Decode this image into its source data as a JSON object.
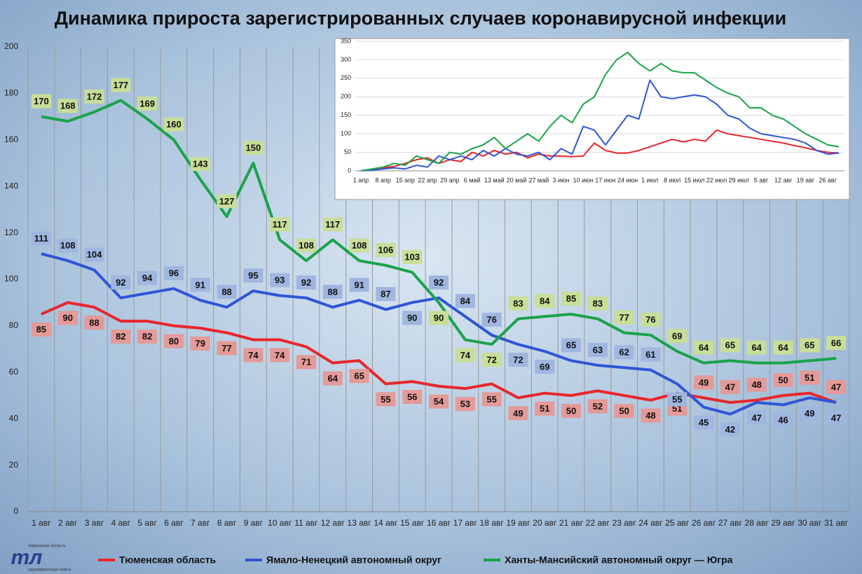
{
  "chart_data": [
    {
      "type": "line",
      "title": "Динамика прироста зарегистрированных случаев коронавирусной инфекции",
      "categories": [
        "1 авг",
        "2 авг",
        "3 авг",
        "4 авг",
        "5 авг",
        "6 авг",
        "7 авг",
        "8 авг",
        "9 авг",
        "10 авг",
        "11 авг",
        "12 авг",
        "13 авг",
        "14 авг",
        "15 авг",
        "16 авг",
        "17 авг",
        "18 авг",
        "19 авг",
        "20 авг",
        "21 авг",
        "22 авг",
        "23 авг",
        "24 авг",
        "25 авг",
        "26 авг",
        "27 авг",
        "28 авг",
        "29 авг",
        "30 авг",
        "31 авг"
      ],
      "series": [
        {
          "name": "Тюменская область",
          "color": "#e8262b",
          "label_color": "#e49a98",
          "values": [
            85,
            90,
            88,
            82,
            82,
            80,
            79,
            77,
            74,
            74,
            71,
            64,
            65,
            55,
            56,
            54,
            53,
            55,
            49,
            51,
            50,
            52,
            50,
            48,
            51,
            49,
            47,
            48,
            50,
            51,
            47
          ]
        },
        {
          "name": "Ямало-Ненецкий автономный округ",
          "color": "#2f56d6",
          "label_color": "#9fb6e0",
          "values": [
            111,
            108,
            104,
            92,
            94,
            96,
            91,
            88,
            95,
            93,
            92,
            88,
            91,
            87,
            90,
            92,
            84,
            76,
            72,
            69,
            65,
            63,
            62,
            61,
            55,
            45,
            42,
            47,
            46,
            49,
            47
          ]
        },
        {
          "name": "Ханты-Мансийский автономный округ — Югра",
          "color": "#1aa34a",
          "label_color": "#c8de98",
          "values": [
            170,
            168,
            172,
            177,
            169,
            160,
            143,
            127,
            150,
            117,
            108,
            117,
            108,
            106,
            103,
            90,
            74,
            72,
            83,
            84,
            85,
            83,
            77,
            76,
            69,
            64,
            65,
            64,
            64,
            65,
            66
          ]
        }
      ],
      "ylim": [
        0,
        200
      ],
      "yticks": [
        0,
        20,
        40,
        60,
        80,
        100,
        120,
        140,
        160,
        180,
        200
      ],
      "grid": true,
      "legend": "bottom"
    },
    {
      "type": "line",
      "categories": [
        "1 апр",
        null,
        "8 апр",
        null,
        "15 апр",
        null,
        "22 апр",
        null,
        "29 апр",
        null,
        "6 май",
        null,
        "13 май",
        null,
        "20 май",
        null,
        "27 май",
        null,
        "3 июн",
        null,
        "10 июн",
        null,
        "17 июн",
        null,
        "24 июн",
        null,
        "1 июл",
        null,
        "8 июл",
        null,
        "15 июл",
        null,
        "22 июл",
        null,
        "29 июл",
        null,
        "5 авг",
        null,
        "12 авг",
        null,
        "19 авг",
        null,
        "26 авг",
        null
      ],
      "series": [
        {
          "color": "#e8262b",
          "values": [
            0,
            3,
            8,
            12,
            20,
            30,
            35,
            20,
            30,
            25,
            50,
            40,
            55,
            45,
            50,
            35,
            45,
            40,
            40,
            38,
            40,
            75,
            55,
            48,
            48,
            55,
            65,
            75,
            85,
            78,
            85,
            80,
            110,
            100,
            95,
            90,
            85,
            80,
            75,
            68,
            62,
            55,
            50,
            48
          ]
        },
        {
          "color": "#2f56d6",
          "values": [
            0,
            2,
            5,
            8,
            5,
            15,
            10,
            40,
            30,
            40,
            30,
            55,
            40,
            60,
            45,
            40,
            50,
            30,
            60,
            45,
            120,
            110,
            70,
            110,
            150,
            140,
            245,
            200,
            195,
            200,
            205,
            200,
            180,
            150,
            140,
            115,
            100,
            95,
            90,
            85,
            75,
            55,
            45,
            48
          ]
        },
        {
          "color": "#1aa34a",
          "values": [
            0,
            5,
            10,
            20,
            15,
            40,
            30,
            20,
            50,
            45,
            60,
            70,
            90,
            60,
            80,
            100,
            80,
            120,
            150,
            130,
            180,
            200,
            260,
            300,
            320,
            290,
            270,
            290,
            270,
            265,
            265,
            245,
            225,
            210,
            200,
            170,
            170,
            150,
            140,
            120,
            100,
            85,
            70,
            65
          ]
        }
      ],
      "ylim": [
        0,
        350
      ],
      "yticks": [
        0,
        50,
        100,
        150,
        200,
        250,
        300,
        350
      ],
      "grid": true
    }
  ],
  "logo": {
    "top": "тюменская область",
    "mark": "тл",
    "bottom": "парламентская газета"
  }
}
